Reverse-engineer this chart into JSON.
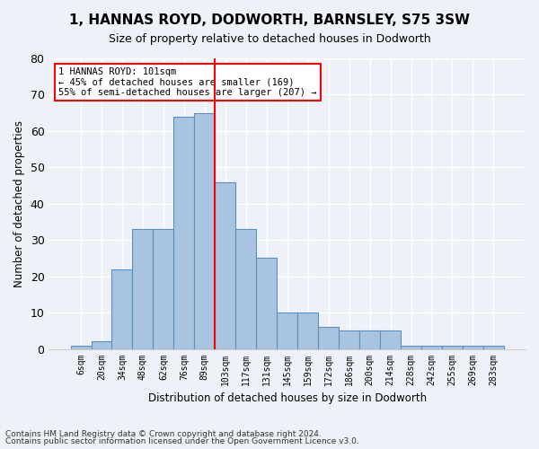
{
  "title1": "1, HANNAS ROYD, DODWORTH, BARNSLEY, S75 3SW",
  "title2": "Size of property relative to detached houses in Dodworth",
  "xlabel": "Distribution of detached houses by size in Dodworth",
  "ylabel": "Number of detached properties",
  "categories": [
    "6sqm",
    "20sqm",
    "34sqm",
    "48sqm",
    "62sqm",
    "76sqm",
    "89sqm",
    "103sqm",
    "117sqm",
    "131sqm",
    "145sqm",
    "159sqm",
    "172sqm",
    "186sqm",
    "200sqm",
    "214sqm",
    "228sqm",
    "242sqm",
    "255sqm",
    "269sqm",
    "283sqm"
  ],
  "bar_heights": [
    1,
    2,
    22,
    33,
    33,
    64,
    65,
    46,
    33,
    25,
    10,
    10,
    6,
    5,
    5,
    5,
    1,
    1,
    1,
    1,
    1
  ],
  "bar_color": "#a8c4e0",
  "bar_edge_color": "#5a8fc0",
  "vline_pos": 6.5,
  "annotation_text": "1 HANNAS ROYD: 101sqm\n← 45% of detached houses are smaller (169)\n55% of semi-detached houses are larger (207) →",
  "footnote1": "Contains HM Land Registry data © Crown copyright and database right 2024.",
  "footnote2": "Contains public sector information licensed under the Open Government Licence v3.0.",
  "ylim": [
    0,
    80
  ],
  "yticks": [
    0,
    10,
    20,
    30,
    40,
    50,
    60,
    70,
    80
  ],
  "background_color": "#eef2f8",
  "grid_color": "#ffffff"
}
